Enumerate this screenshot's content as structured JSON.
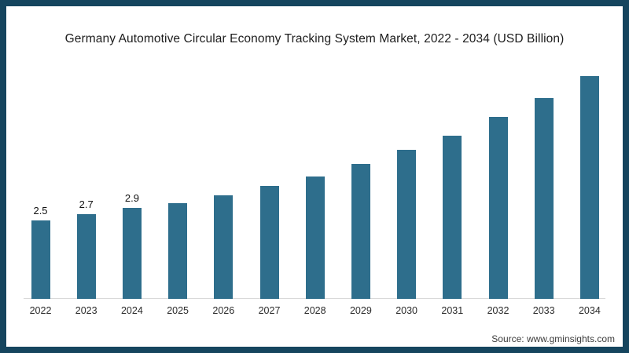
{
  "frame": {
    "border_color": "#15455e",
    "background_color": "#ffffff"
  },
  "title": "Germany Automotive Circular Economy Tracking System Market, 2022 - 2034 (USD Billion)",
  "source": "Source: www.gminsights.com",
  "chart_data": {
    "type": "bar",
    "title": "Germany Automotive Circular Economy Tracking System Market, 2022 - 2034 (USD Billion)",
    "categories": [
      "2022",
      "2023",
      "2024",
      "2025",
      "2026",
      "2027",
      "2028",
      "2029",
      "2030",
      "2031",
      "2032",
      "2033",
      "2034"
    ],
    "values": [
      2.5,
      2.7,
      2.9,
      3.05,
      3.3,
      3.6,
      3.9,
      4.3,
      4.75,
      5.2,
      5.8,
      6.4,
      7.1
    ],
    "point_labels": [
      "2.5",
      "2.7",
      "2.9",
      "",
      "",
      "",
      "",
      "",
      "",
      "",
      "",
      "",
      ""
    ],
    "xlabel": "",
    "ylabel": "",
    "ylim": [
      0,
      7.5
    ],
    "grid": false,
    "legend": false,
    "bar_color": "#2e6e8c",
    "axis_line_color": "#d9d9d9",
    "source": "Source: www.gminsights.com"
  }
}
